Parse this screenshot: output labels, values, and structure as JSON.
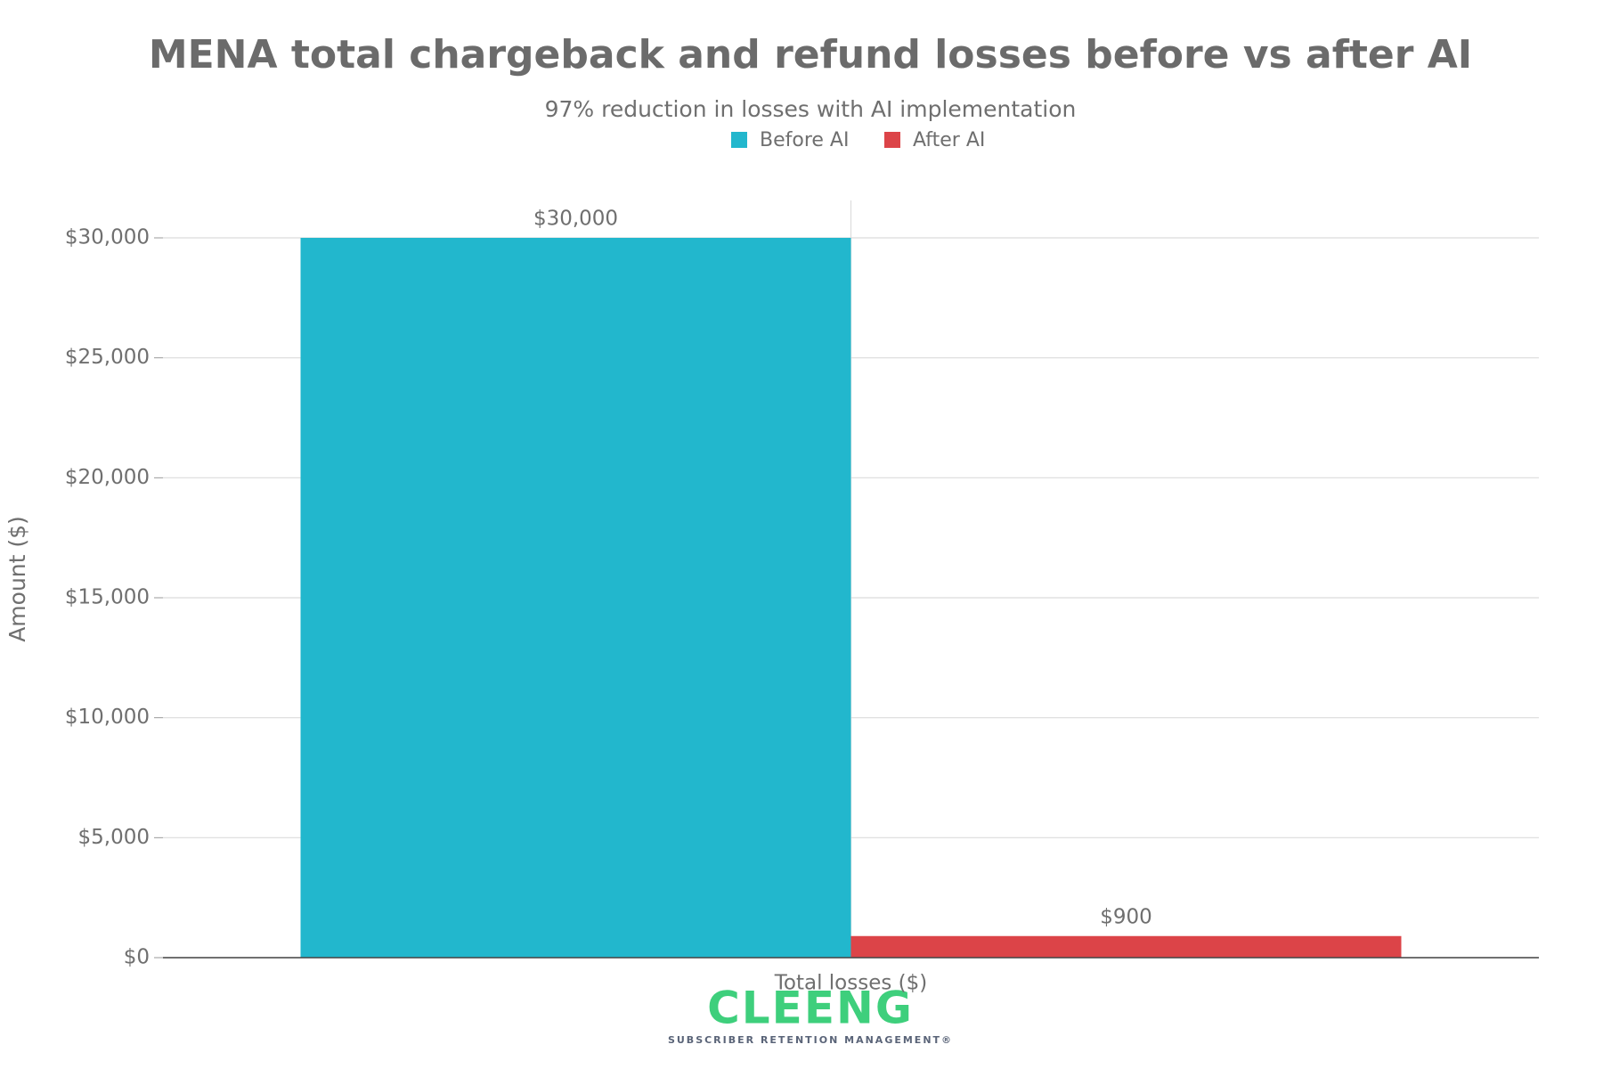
{
  "chart_data": {
    "type": "bar",
    "title": "MENA total chargeback and refund losses before vs after AI",
    "subtitle": "97% reduction in losses with AI implementation",
    "y_label": "Amount ($)",
    "categories": [
      "Total losses ($)"
    ],
    "series": [
      {
        "name": "Before AI",
        "color": "#22b7cd",
        "values": [
          30000
        ],
        "value_labels": [
          "$30,000"
        ]
      },
      {
        "name": "After AI",
        "color": "#dc4448",
        "values": [
          900
        ],
        "value_labels": [
          "$900"
        ]
      }
    ],
    "ylim": [
      0,
      30000
    ],
    "yticks": [
      {
        "value": 0,
        "label": "$0"
      },
      {
        "value": 5000,
        "label": "$5,000"
      },
      {
        "value": 10000,
        "label": "$10,000"
      },
      {
        "value": 15000,
        "label": "$15,000"
      },
      {
        "value": 20000,
        "label": "$20,000"
      },
      {
        "value": 25000,
        "label": "$25,000"
      },
      {
        "value": 30000,
        "label": "$30,000"
      }
    ],
    "grid": true,
    "legend": "top",
    "logo": {
      "text": "CLEENG",
      "tagline": "SUBSCRIBER RETENTION MANAGEMENT®"
    }
  }
}
